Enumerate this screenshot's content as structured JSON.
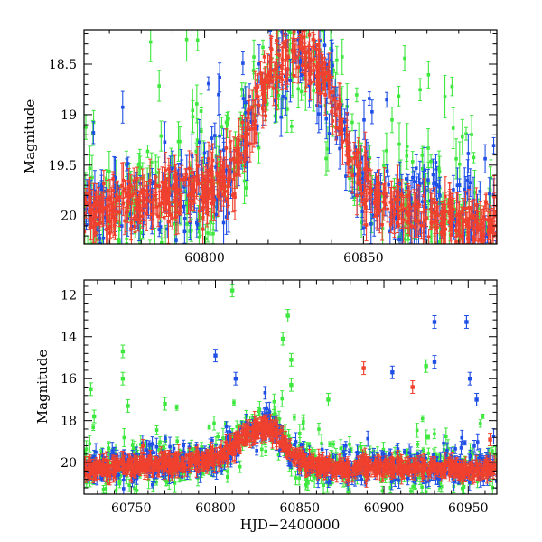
{
  "chart_data": [
    {
      "type": "scatter",
      "panel": "top",
      "title": "",
      "xlabel": "",
      "ylabel": "Magnitude",
      "xlim": [
        60762,
        60892
      ],
      "ylim": [
        20.28,
        18.16
      ],
      "y_inverted": true,
      "xticks": [
        60800,
        60850
      ],
      "xtick_labels": [
        "60800",
        "60850"
      ],
      "yticks": [
        18.5,
        19,
        19.5,
        20
      ],
      "ytick_labels": [
        "18.5",
        "19",
        "19.5",
        "20"
      ],
      "grid": false,
      "legend": "none",
      "series": [
        {
          "name": "green",
          "color": "#3ee83e"
        },
        {
          "name": "blue",
          "color": "#1f4fe6"
        },
        {
          "name": "red",
          "color": "#f0402e"
        }
      ],
      "trend": {
        "x": [
          60762,
          60780,
          60800,
          60810,
          60815,
          60820,
          60825,
          60828,
          60832,
          60836,
          60840,
          60845,
          60850,
          60860,
          60875,
          60892
        ],
        "y": [
          20.0,
          19.85,
          19.75,
          19.5,
          19.0,
          18.65,
          18.45,
          18.35,
          18.4,
          18.55,
          18.8,
          19.3,
          19.7,
          19.95,
          20.05,
          20.1
        ]
      }
    },
    {
      "type": "scatter",
      "panel": "bottom",
      "title": "",
      "xlabel": "HJD−2400000",
      "ylabel": "Magnitude",
      "xlim": [
        60722,
        60967
      ],
      "ylim": [
        21.5,
        11.3
      ],
      "y_inverted": true,
      "xticks": [
        60750,
        60800,
        60850,
        60900,
        60950
      ],
      "xtick_labels": [
        "60750",
        "60800",
        "60850",
        "60900",
        "60950"
      ],
      "yticks": [
        12,
        14,
        16,
        18,
        20
      ],
      "ytick_labels": [
        "12",
        "14",
        "16",
        "18",
        "20"
      ],
      "grid": false,
      "legend": "none",
      "series": [
        {
          "name": "green",
          "color": "#3ee83e"
        },
        {
          "name": "blue",
          "color": "#1f4fe6"
        },
        {
          "name": "red",
          "color": "#f0402e"
        }
      ],
      "trend": {
        "x": [
          60725,
          60750,
          60780,
          60800,
          60810,
          60820,
          60828,
          60835,
          60845,
          60855,
          60880,
          60910,
          60940,
          60963
        ],
        "y": [
          20.3,
          20.2,
          20.0,
          19.8,
          19.2,
          18.6,
          18.3,
          18.5,
          19.5,
          20.1,
          20.3,
          20.2,
          20.3,
          20.3
        ]
      },
      "outliers": [
        {
          "x": 60810,
          "y": 11.8,
          "series": "green"
        },
        {
          "x": 60843,
          "y": 13.0,
          "series": "green"
        },
        {
          "x": 60840,
          "y": 14.1,
          "series": "green"
        },
        {
          "x": 60745,
          "y": 14.7,
          "series": "green"
        },
        {
          "x": 60745,
          "y": 16.0,
          "series": "green"
        },
        {
          "x": 60800,
          "y": 14.9,
          "series": "blue"
        },
        {
          "x": 60845,
          "y": 15.1,
          "series": "green"
        },
        {
          "x": 60888,
          "y": 15.5,
          "series": "red"
        },
        {
          "x": 60905,
          "y": 15.7,
          "series": "blue"
        },
        {
          "x": 60925,
          "y": 15.4,
          "series": "green"
        },
        {
          "x": 60930,
          "y": 13.3,
          "series": "blue"
        },
        {
          "x": 60949,
          "y": 13.3,
          "series": "blue"
        },
        {
          "x": 60930,
          "y": 15.2,
          "series": "blue"
        },
        {
          "x": 60951,
          "y": 16.0,
          "series": "blue"
        },
        {
          "x": 60726,
          "y": 16.5,
          "series": "green"
        },
        {
          "x": 60728,
          "y": 17.8,
          "series": "green"
        },
        {
          "x": 60748,
          "y": 17.3,
          "series": "green"
        },
        {
          "x": 60770,
          "y": 17.2,
          "series": "green"
        },
        {
          "x": 60812,
          "y": 16.0,
          "series": "blue"
        },
        {
          "x": 60845,
          "y": 16.3,
          "series": "green"
        },
        {
          "x": 60867,
          "y": 17.0,
          "series": "green"
        },
        {
          "x": 60917,
          "y": 16.4,
          "series": "red"
        },
        {
          "x": 60955,
          "y": 17.0,
          "series": "blue"
        },
        {
          "x": 60963,
          "y": 18.9,
          "series": "red"
        },
        {
          "x": 60757,
          "y": 19.2,
          "series": "red"
        }
      ]
    }
  ]
}
